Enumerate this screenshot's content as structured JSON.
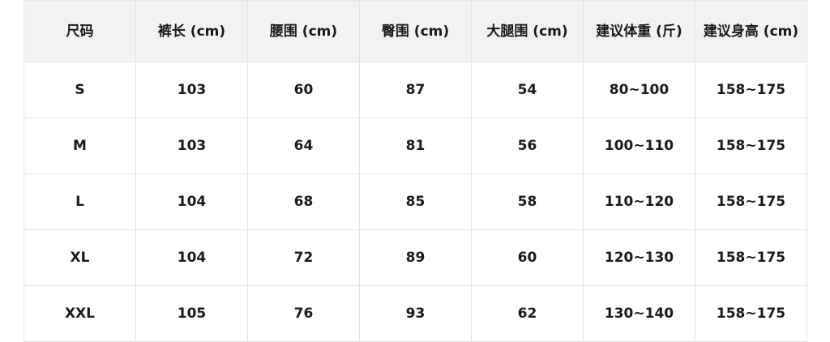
{
  "table": {
    "headers": [
      "尺码",
      "裤长 (cm)",
      "腰围 (cm)",
      "臀围 (cm)",
      "大腿围 (cm)",
      "建议体重 (斤)",
      "建议身高 (cm)"
    ],
    "rows": [
      [
        "S",
        "103",
        "60",
        "87",
        "54",
        "80~100",
        "158~175"
      ],
      [
        "M",
        "103",
        "64",
        "81",
        "56",
        "100~110",
        "158~175"
      ],
      [
        "L",
        "104",
        "68",
        "85",
        "58",
        "110~120",
        "158~175"
      ],
      [
        "XL",
        "104",
        "72",
        "89",
        "60",
        "120~130",
        "158~175"
      ],
      [
        "XXL",
        "105",
        "76",
        "93",
        "62",
        "130~140",
        "158~175"
      ]
    ]
  },
  "colors": {
    "header_bg": "#f2f2f2",
    "border": "#e2e2e2",
    "text": "#1a1a1a"
  }
}
